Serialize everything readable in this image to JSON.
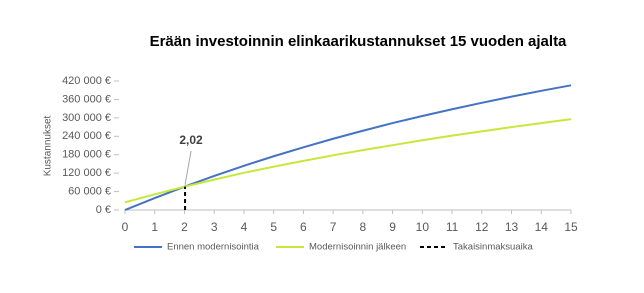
{
  "chart_data": {
    "type": "line",
    "title": "Erään investoinnin elinkaarikustannukset 15 vuoden ajalta",
    "ylabel": "Kustannukset",
    "x": [
      0,
      1,
      2,
      3,
      4,
      5,
      6,
      7,
      8,
      9,
      10,
      11,
      12,
      13,
      14,
      15
    ],
    "xlim": [
      0,
      15
    ],
    "xticks": [
      0,
      1,
      2,
      3,
      4,
      5,
      6,
      7,
      8,
      9,
      10,
      11,
      12,
      13,
      14,
      15
    ],
    "ylim": [
      0,
      420000
    ],
    "yticks": [
      {
        "value": 0,
        "label": "0 €"
      },
      {
        "value": 60000,
        "label": "60 000 €"
      },
      {
        "value": 120000,
        "label": "120 000 €"
      },
      {
        "value": 180000,
        "label": "180 000 €"
      },
      {
        "value": 240000,
        "label": "240 000 €"
      },
      {
        "value": 300000,
        "label": "300 000 €"
      },
      {
        "value": 360000,
        "label": "360 000 €"
      },
      {
        "value": 420000,
        "label": "420 000 €"
      }
    ],
    "grid": false,
    "series": [
      {
        "name": "Ennen modernisointia",
        "color": "#4472c4",
        "values": [
          0,
          39000,
          76000,
          111000,
          144000,
          175000,
          204000,
          232000,
          258000,
          283000,
          306000,
          328000,
          349000,
          369000,
          388000,
          406000
        ]
      },
      {
        "name": "Modernisoinnin jälkeen",
        "color": "#c5e83a",
        "values": [
          25000,
          51000,
          76000,
          99000,
          121000,
          141000,
          160000,
          178000,
          195000,
          211000,
          227000,
          242000,
          256000,
          270000,
          283000,
          296000
        ]
      }
    ],
    "payback": {
      "name": "Takaisinmaksuaika",
      "x": 2.02,
      "label": "2,02",
      "y": 76000,
      "color": "#000000"
    },
    "legend": "bottom"
  }
}
